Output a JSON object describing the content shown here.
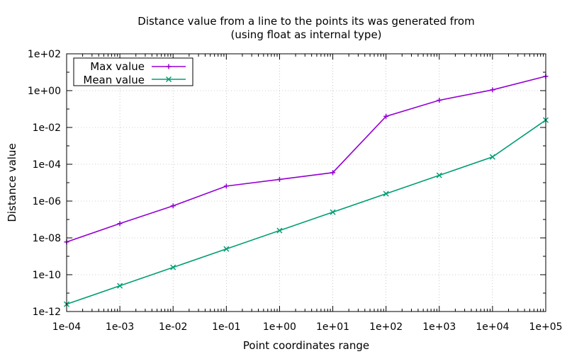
{
  "chart_data": {
    "type": "line",
    "title": "Distance value from a line to the points its was generated from",
    "subtitle": "(using float as internal type)",
    "xlabel": "Point coordinates range",
    "ylabel": "Distance value",
    "x_scale": "log",
    "y_scale": "log",
    "xlim": [
      0.0001,
      100000
    ],
    "ylim": [
      1e-12,
      100
    ],
    "grid": true,
    "legend_position": "top-left",
    "x_ticks": [
      "1e-04",
      "1e-03",
      "1e-02",
      "1e-01",
      "1e+00",
      "1e+01",
      "1e+02",
      "1e+03",
      "1e+04",
      "1e+05"
    ],
    "y_ticks": [
      "1e+02",
      "1e+00",
      "1e-02",
      "1e-04",
      "1e-06",
      "1e-08",
      "1e-10",
      "1e-12"
    ],
    "x": [
      0.0001,
      0.001,
      0.01,
      0.1,
      1,
      10,
      100,
      1000,
      10000,
      100000
    ],
    "series": [
      {
        "name": "Max value",
        "color": "#9400d3",
        "marker": "plus",
        "values": [
          6e-09,
          6e-08,
          5.5e-07,
          6.5e-06,
          1.5e-05,
          3.5e-05,
          0.04,
          0.3,
          1.1,
          6
        ]
      },
      {
        "name": "Mean value",
        "color": "#009e73",
        "marker": "cross",
        "values": [
          2.5e-12,
          2.5e-11,
          2.5e-10,
          2.5e-09,
          2.5e-08,
          2.5e-07,
          2.5e-06,
          2.5e-05,
          0.00025,
          0.025
        ]
      }
    ]
  }
}
